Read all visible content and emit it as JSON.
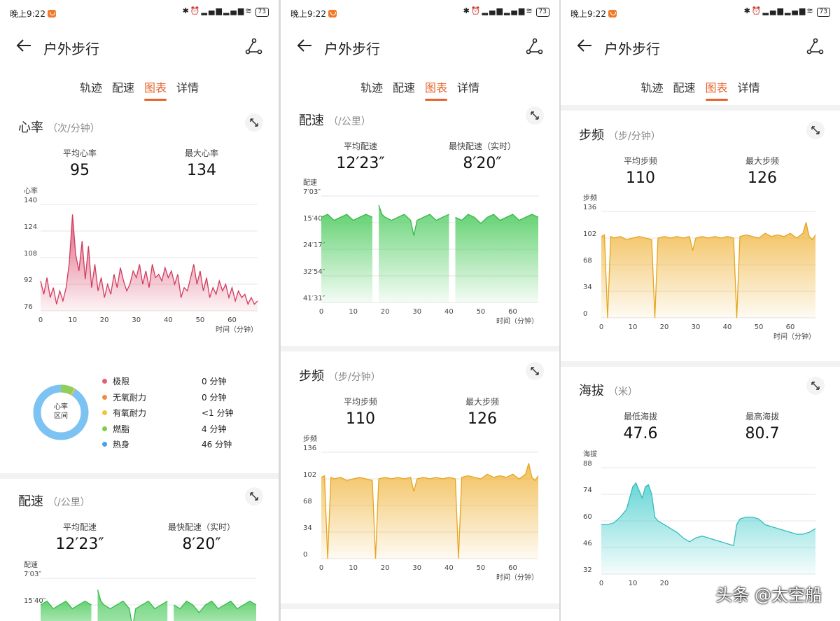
{
  "status": {
    "time": "晚上9:22",
    "battery": "73"
  },
  "header": {
    "title": "户外步行"
  },
  "tabs": [
    "轨迹",
    "配速",
    "图表",
    "详情"
  ],
  "active_tab": "图表",
  "colors": {
    "accent": "#e8632b",
    "heart": "#d9486b",
    "pace": "#4ccb5d",
    "cadence": "#f0b43c",
    "altitude": "#4fcfcf"
  },
  "icons": {
    "back": "arrow-left-icon",
    "route": "route-icon",
    "expand": "expand-icon"
  },
  "heart_rate": {
    "title": "心率",
    "unit": "（次/分钟）",
    "avg_label": "平均心率",
    "avg": "95",
    "max_label": "最大心率",
    "max": "134",
    "y_title": "心率",
    "x_label": "时间（分钟）",
    "zone_center": "心率\n区间",
    "zones": [
      {
        "name": "极限",
        "value": "0 分钟",
        "color": "#e0626e"
      },
      {
        "name": "无氧耐力",
        "value": "0 分钟",
        "color": "#f08a4a"
      },
      {
        "name": "有氧耐力",
        "value": "<1 分钟",
        "color": "#f3c23f"
      },
      {
        "name": "燃脂",
        "value": "4 分钟",
        "color": "#7ccf4a"
      },
      {
        "name": "热身",
        "value": "46 分钟",
        "color": "#4a9fe8"
      }
    ]
  },
  "pace": {
    "title": "配速",
    "unit": "（/公里）",
    "avg_label": "平均配速",
    "avg": "12′23″",
    "max_label": "最快配速（实时）",
    "max": "8′20″",
    "y_title": "配速",
    "x_label": "时间（分钟）"
  },
  "cadence": {
    "title": "步频",
    "unit": "（步/分钟）",
    "avg_label": "平均步频",
    "avg": "110",
    "max_label": "最大步频",
    "max": "126",
    "y_title": "步频",
    "x_label": "时间（分钟）"
  },
  "altitude": {
    "title": "海拔",
    "unit": "（米）",
    "min_label": "最低海拔",
    "min": "47.6",
    "max_label": "最高海拔",
    "max": "80.7",
    "y_title": "海拔"
  },
  "watermark": "头条 @太空船",
  "chart_data": [
    {
      "type": "area",
      "title": "心率",
      "ylabel": "心率",
      "xlabel": "时间（分钟）",
      "xlim": [
        0,
        68
      ],
      "ylim": [
        76,
        140
      ],
      "yticks": [
        "140",
        "124",
        "108",
        "92",
        "76"
      ],
      "xticks": [
        "0",
        "10",
        "20",
        "30",
        "40",
        "50",
        "60"
      ],
      "series": [
        {
          "x": [
            0,
            1,
            2,
            3,
            4,
            5,
            6,
            7,
            8,
            9,
            10,
            11,
            12,
            13,
            14,
            15,
            16,
            17,
            18,
            19,
            20,
            21,
            22,
            23,
            24,
            25,
            26,
            27,
            28,
            29,
            30,
            31,
            32,
            33,
            34,
            35,
            36,
            37,
            38,
            39,
            40,
            41,
            42,
            43,
            44,
            45,
            46,
            47,
            48,
            49,
            50,
            51,
            52,
            53,
            54,
            55,
            56,
            57,
            58,
            59,
            60,
            61,
            62,
            63,
            64,
            65,
            66,
            67,
            68
          ],
          "y": [
            94,
            86,
            96,
            84,
            90,
            80,
            88,
            82,
            90,
            105,
            134,
            110,
            100,
            118,
            95,
            115,
            90,
            104,
            88,
            96,
            84,
            92,
            86,
            98,
            90,
            102,
            94,
            88,
            92,
            100,
            96,
            104,
            92,
            100,
            90,
            104,
            96,
            98,
            94,
            102,
            96,
            100,
            92,
            98,
            84,
            90,
            88,
            96,
            104,
            92,
            100,
            88,
            96,
            84,
            90,
            86,
            94,
            88,
            92,
            84,
            90,
            82,
            88,
            84,
            86,
            80,
            84,
            80,
            82
          ]
        }
      ]
    },
    {
      "type": "area",
      "title": "配速",
      "ylabel": "配速",
      "xlabel": "时间（分钟）",
      "xlim": [
        0,
        68
      ],
      "yticks": [
        "7′03″",
        "15′40″",
        "24′17″",
        "32′54″",
        "41′31″"
      ],
      "xticks": [
        "0",
        "10",
        "20",
        "30",
        "40",
        "50",
        "60"
      ],
      "series": [
        {
          "x": [
            0,
            2,
            4,
            6,
            8,
            10,
            12,
            14,
            16,
            17,
            18,
            19,
            20,
            22,
            24,
            26,
            28,
            29,
            30,
            32,
            34,
            36,
            38,
            40,
            41,
            42,
            44,
            46,
            48,
            50,
            52,
            54,
            56,
            58,
            60,
            62,
            64,
            66,
            68
          ],
          "y": [
            14,
            13,
            15,
            14,
            13,
            15,
            14,
            13,
            14,
            null,
            10,
            13,
            14,
            15,
            14,
            13,
            15,
            20,
            15,
            14,
            13,
            15,
            14,
            13,
            null,
            14,
            15,
            13,
            14,
            16,
            14,
            13,
            15,
            14,
            13,
            15,
            14,
            13,
            14
          ]
        }
      ]
    },
    {
      "type": "area",
      "title": "步频",
      "ylabel": "步频",
      "xlabel": "时间（分钟）",
      "xlim": [
        0,
        68
      ],
      "ylim": [
        0,
        136
      ],
      "yticks": [
        "136",
        "102",
        "68",
        "34",
        "0"
      ],
      "xticks": [
        "0",
        "10",
        "20",
        "30",
        "40",
        "50",
        "60"
      ],
      "series": [
        {
          "x": [
            0,
            1,
            2,
            3,
            4,
            6,
            8,
            10,
            12,
            14,
            16,
            17,
            18,
            20,
            22,
            24,
            26,
            28,
            29,
            30,
            32,
            34,
            36,
            38,
            40,
            42,
            43,
            44,
            46,
            48,
            50,
            52,
            54,
            56,
            58,
            60,
            62,
            64,
            65,
            66,
            67,
            68
          ],
          "y": [
            104,
            106,
            0,
            104,
            102,
            104,
            100,
            102,
            104,
            102,
            100,
            0,
            102,
            104,
            102,
            104,
            102,
            104,
            86,
            102,
            104,
            102,
            104,
            102,
            104,
            102,
            0,
            104,
            106,
            104,
            102,
            108,
            104,
            106,
            104,
            108,
            102,
            108,
            122,
            104,
            100,
            106
          ]
        }
      ]
    },
    {
      "type": "area",
      "title": "海拔",
      "ylabel": "海拔",
      "xlim": [
        0,
        68
      ],
      "ylim": [
        32,
        88
      ],
      "yticks": [
        "88",
        "74",
        "60",
        "46",
        "32"
      ],
      "xticks": [
        "0",
        "10",
        "20"
      ],
      "series": [
        {
          "x": [
            0,
            2,
            4,
            6,
            8,
            9,
            10,
            11,
            12,
            13,
            14,
            15,
            16,
            17,
            18,
            20,
            22,
            24,
            26,
            28,
            30,
            32,
            34,
            36,
            38,
            40,
            42,
            43,
            44,
            46,
            48,
            50,
            52,
            54,
            56,
            58,
            60,
            62,
            64,
            66,
            68
          ],
          "y": [
            58,
            58,
            59,
            62,
            66,
            72,
            78,
            80,
            76,
            72,
            78,
            79,
            74,
            62,
            60,
            58,
            56,
            54,
            51,
            49,
            51,
            52,
            51,
            50,
            49,
            48,
            47,
            58,
            61,
            62,
            62,
            61,
            58,
            57,
            56,
            55,
            54,
            53,
            53,
            54,
            56
          ]
        }
      ]
    }
  ]
}
